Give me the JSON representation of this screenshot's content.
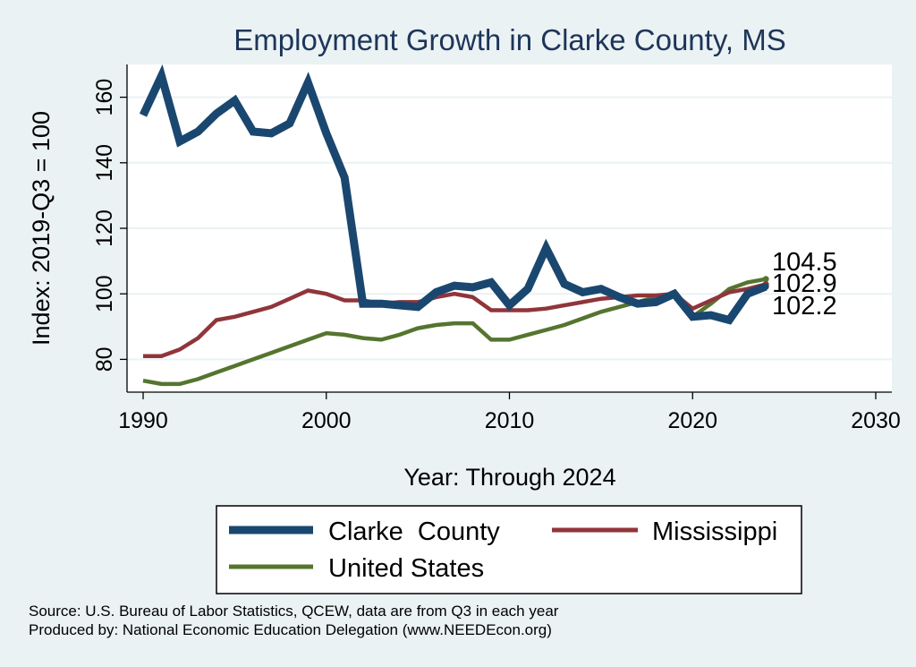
{
  "chart_data": {
    "type": "line",
    "title": "Employment Growth in Clarke County, MS",
    "xlabel": "Year: Through 2024",
    "ylabel": "Index: 2019-Q3 = 100",
    "xlim": [
      1990,
      2030
    ],
    "ylim": [
      70,
      170
    ],
    "xticks": [
      1990,
      2000,
      2010,
      2020,
      2030
    ],
    "yticks": [
      80,
      100,
      120,
      140,
      160
    ],
    "grid": true,
    "legend_position": "bottom",
    "x": [
      1990,
      1991,
      1992,
      1993,
      1994,
      1995,
      1996,
      1997,
      1998,
      1999,
      2000,
      2001,
      2002,
      2003,
      2004,
      2005,
      2006,
      2007,
      2008,
      2009,
      2010,
      2011,
      2012,
      2013,
      2014,
      2015,
      2016,
      2017,
      2018,
      2019,
      2020,
      2021,
      2022,
      2023,
      2024
    ],
    "series": [
      {
        "name": "Clarke  County",
        "color": "#1a476f",
        "end_label": "102.2",
        "values": [
          154.5,
          166.5,
          146.5,
          149.5,
          155.0,
          159.0,
          149.5,
          149.0,
          152.0,
          164.5,
          149.0,
          135.5,
          97.0,
          97.0,
          96.5,
          96.0,
          100.5,
          102.5,
          102.0,
          103.5,
          96.5,
          101.5,
          114.0,
          103.0,
          100.5,
          101.5,
          99.0,
          97.0,
          97.5,
          100.0,
          93.0,
          93.5,
          92.0,
          100.0,
          102.2
        ]
      },
      {
        "name": "Mississippi",
        "color": "#90353b",
        "end_label": "102.9",
        "values": [
          81.0,
          81.0,
          83.0,
          86.5,
          92.0,
          93.0,
          94.5,
          96.0,
          98.5,
          101.0,
          100.0,
          98.0,
          98.0,
          97.0,
          97.5,
          97.5,
          99.0,
          100.0,
          99.0,
          95.0,
          95.0,
          95.0,
          95.5,
          96.5,
          97.5,
          98.5,
          99.0,
          99.5,
          99.5,
          100.0,
          95.5,
          98.0,
          100.5,
          101.5,
          102.9
        ]
      },
      {
        "name": "United States",
        "color": "#55752f",
        "end_label": "104.5",
        "values": [
          73.5,
          72.5,
          72.5,
          74.0,
          76.0,
          78.0,
          80.0,
          82.0,
          84.0,
          86.0,
          88.0,
          87.5,
          86.5,
          86.0,
          87.5,
          89.5,
          90.5,
          91.0,
          91.0,
          86.0,
          86.0,
          87.5,
          89.0,
          90.5,
          92.5,
          94.5,
          96.0,
          97.5,
          99.0,
          100.0,
          93.0,
          97.0,
          101.5,
          103.5,
          104.5
        ]
      }
    ]
  },
  "source": {
    "line1": "Source: U.S. Bureau of Labor Statistics, QCEW, data are from Q3 in each year",
    "line2": "Produced by: National Economic Education Delegation (www.NEEDEcon.org)"
  }
}
